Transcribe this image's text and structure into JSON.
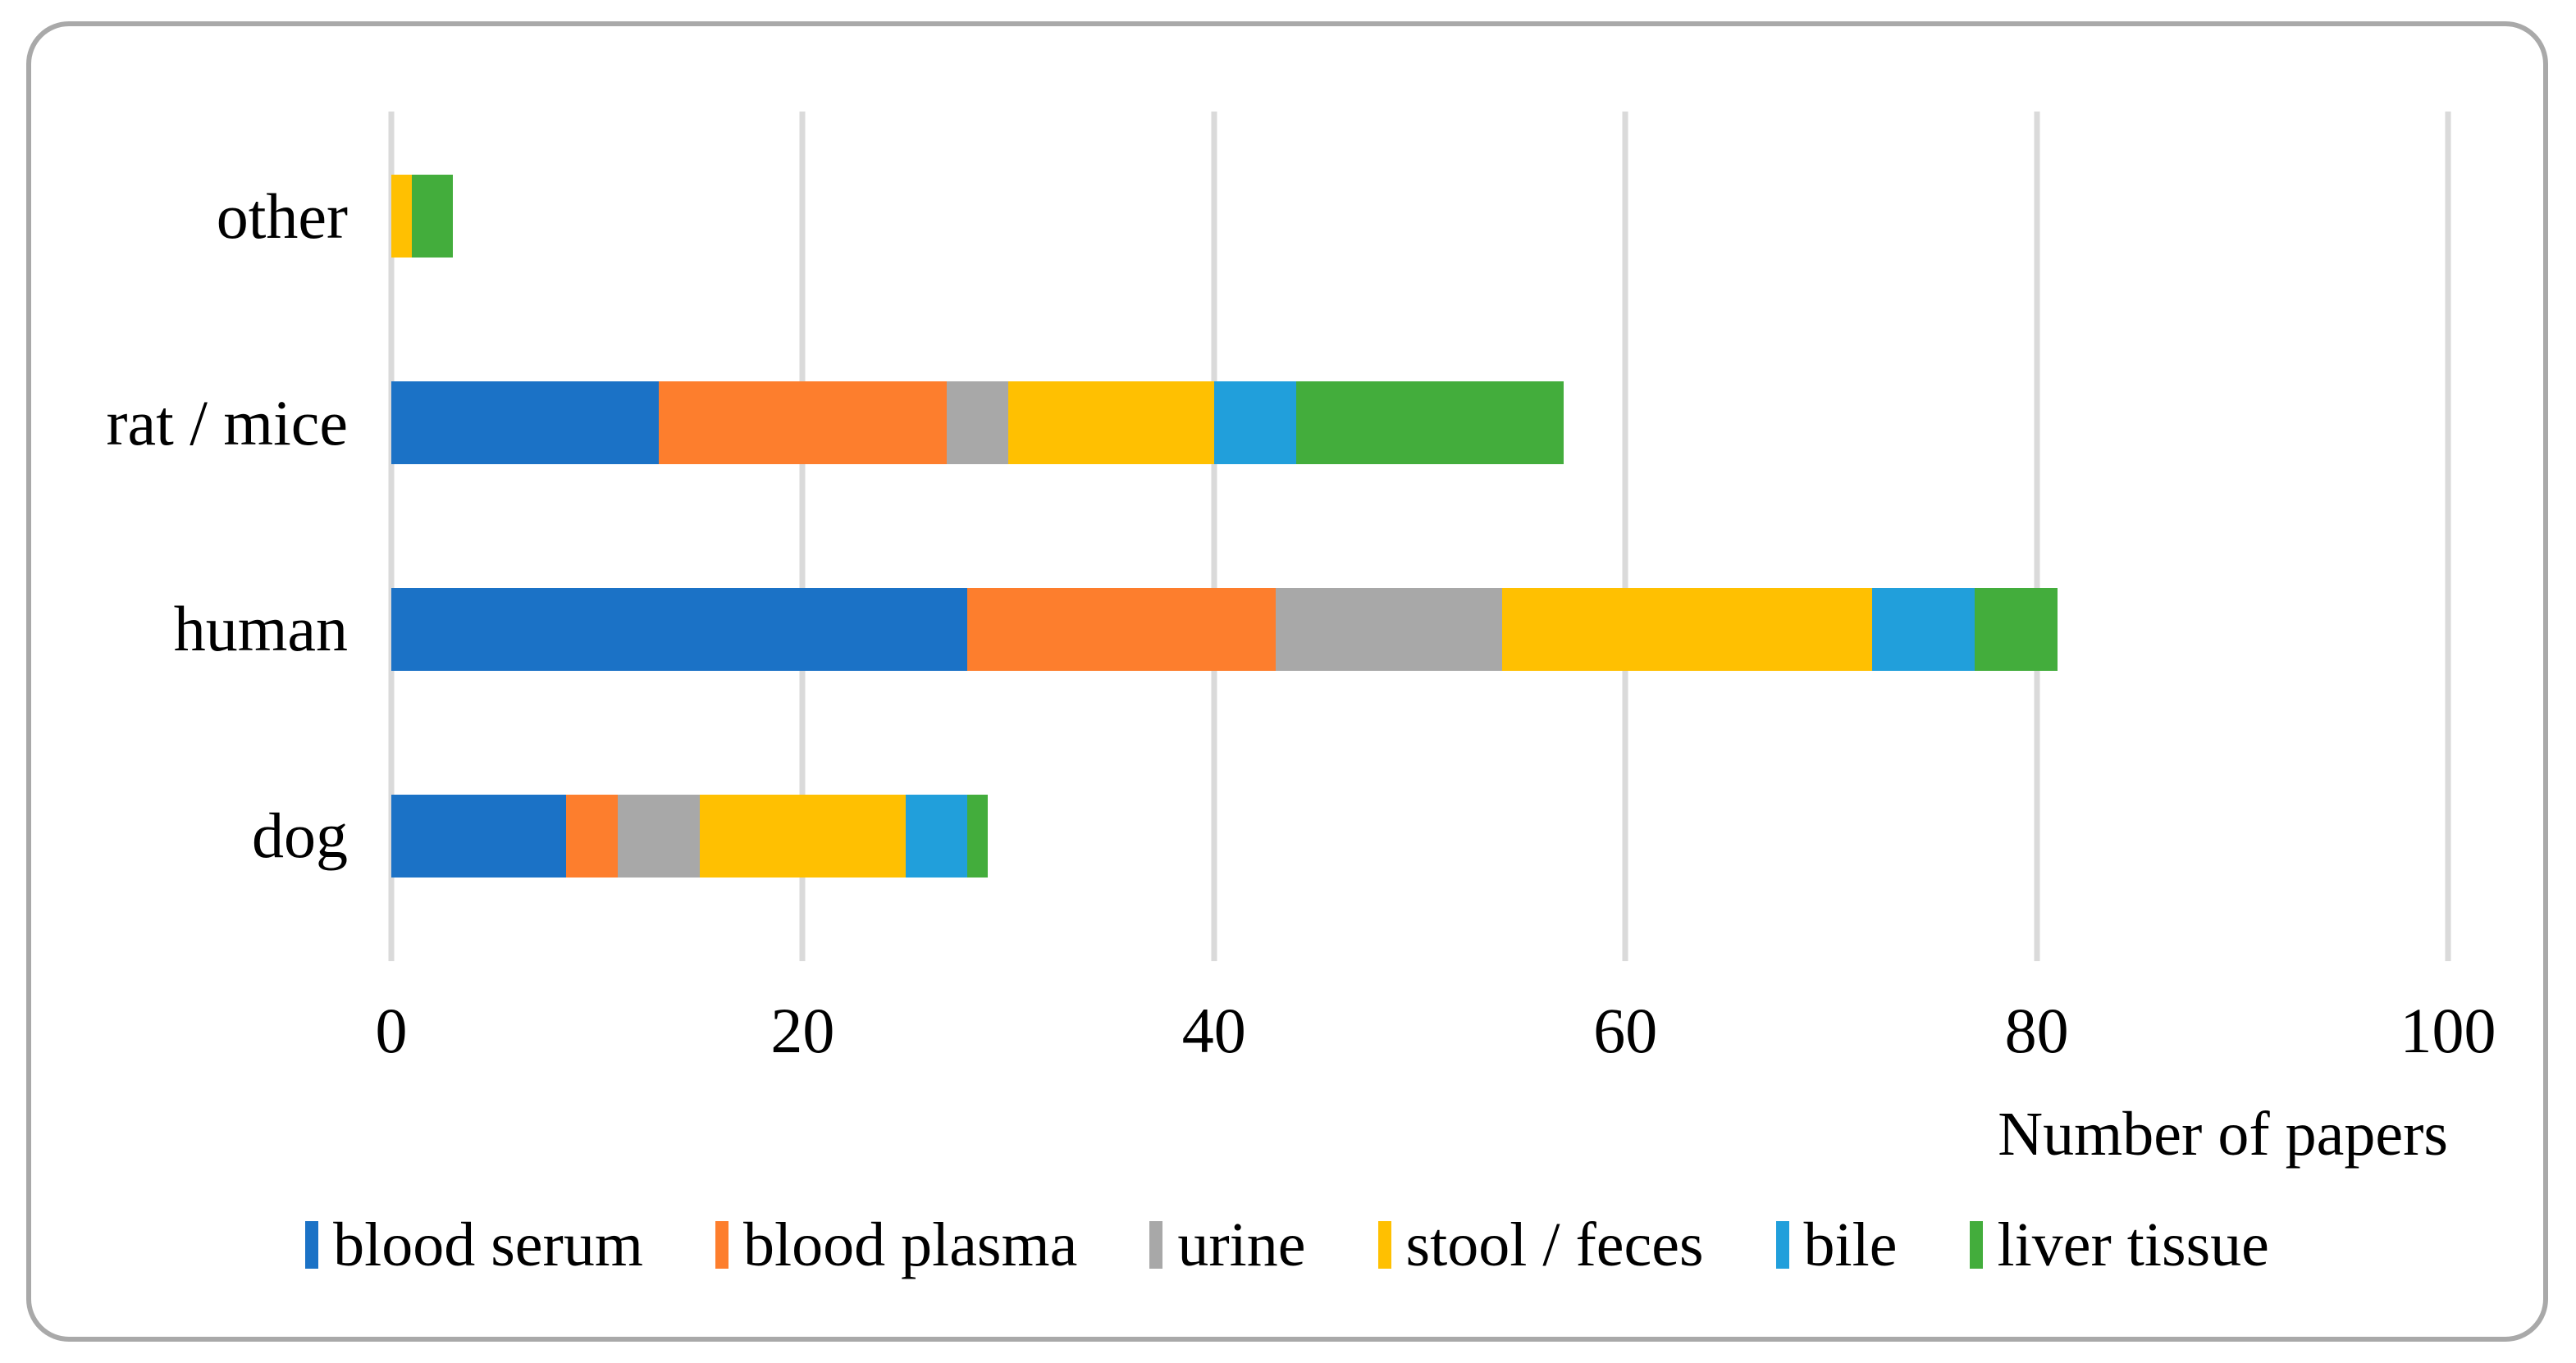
{
  "chart_data": {
    "type": "bar",
    "orientation": "horizontal",
    "stacked": true,
    "title": "",
    "xlabel": "Number of papers",
    "ylabel": "",
    "xlim": [
      0,
      100
    ],
    "x_ticks": [
      0,
      20,
      40,
      60,
      80,
      100
    ],
    "grid": "vertical-only",
    "legend_position": "bottom",
    "categories": [
      "other",
      "rat / mice",
      "human",
      "dog"
    ],
    "series": [
      {
        "name": "blood serum",
        "color": "#1B72C6",
        "values": [
          0,
          13,
          28,
          8.5
        ]
      },
      {
        "name": "blood plasma",
        "color": "#FD7E2D",
        "values": [
          0,
          14,
          15,
          2.5
        ]
      },
      {
        "name": "urine",
        "color": "#A8A8A8",
        "values": [
          0,
          3,
          11,
          4
        ]
      },
      {
        "name": "stool / feces",
        "color": "#FFC001",
        "values": [
          1,
          10,
          18,
          10
        ]
      },
      {
        "name": "bile",
        "color": "#219FDB",
        "values": [
          0,
          4,
          5,
          3
        ]
      },
      {
        "name": "liver tissue",
        "color": "#43AD3C",
        "values": [
          2,
          13,
          4,
          1
        ]
      }
    ],
    "category_totals": [
      3,
      57,
      81,
      29
    ]
  },
  "style_colors": {
    "gridline": "#DADADA",
    "frame_border": "#A9A9A9",
    "background": "#FFFFFF",
    "text": "#000000"
  }
}
